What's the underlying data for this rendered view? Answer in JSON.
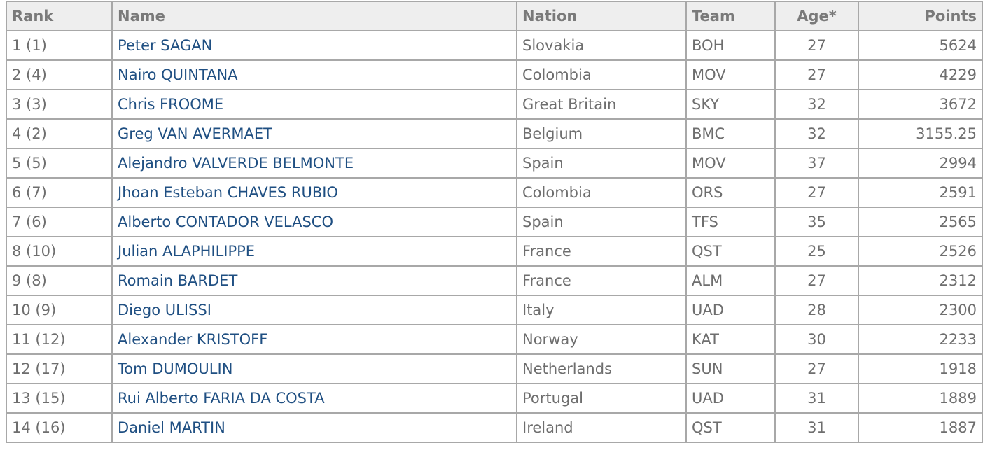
{
  "table": {
    "headers": {
      "rank": "Rank",
      "name": "Name",
      "nation": "Nation",
      "team": "Team",
      "age": "Age*",
      "points": "Points"
    },
    "rows": [
      {
        "rank": "1 (1)",
        "name": "Peter SAGAN",
        "nation": "Slovakia",
        "team": "BOH",
        "age": "27",
        "points": "5624"
      },
      {
        "rank": "2 (4)",
        "name": "Nairo QUINTANA",
        "nation": "Colombia",
        "team": "MOV",
        "age": "27",
        "points": "4229"
      },
      {
        "rank": "3 (3)",
        "name": "Chris FROOME",
        "nation": "Great Britain",
        "team": "SKY",
        "age": "32",
        "points": "3672"
      },
      {
        "rank": "4 (2)",
        "name": "Greg VAN AVERMAET",
        "nation": "Belgium",
        "team": "BMC",
        "age": "32",
        "points": "3155.25"
      },
      {
        "rank": "5 (5)",
        "name": "Alejandro VALVERDE BELMONTE",
        "nation": "Spain",
        "team": "MOV",
        "age": "37",
        "points": "2994"
      },
      {
        "rank": "6 (7)",
        "name": "Jhoan Esteban CHAVES RUBIO",
        "nation": "Colombia",
        "team": "ORS",
        "age": "27",
        "points": "2591"
      },
      {
        "rank": "7 (6)",
        "name": "Alberto CONTADOR VELASCO",
        "nation": "Spain",
        "team": "TFS",
        "age": "35",
        "points": "2565"
      },
      {
        "rank": "8 (10)",
        "name": "Julian ALAPHILIPPE",
        "nation": "France",
        "team": "QST",
        "age": "25",
        "points": "2526"
      },
      {
        "rank": "9 (8)",
        "name": "Romain BARDET",
        "nation": "France",
        "team": "ALM",
        "age": "27",
        "points": "2312"
      },
      {
        "rank": "10 (9)",
        "name": "Diego ULISSI",
        "nation": "Italy",
        "team": "UAD",
        "age": "28",
        "points": "2300"
      },
      {
        "rank": "11 (12)",
        "name": "Alexander KRISTOFF",
        "nation": "Norway",
        "team": "KAT",
        "age": "30",
        "points": "2233"
      },
      {
        "rank": "12 (17)",
        "name": "Tom DUMOULIN",
        "nation": "Netherlands",
        "team": "SUN",
        "age": "27",
        "points": "1918"
      },
      {
        "rank": "13 (15)",
        "name": "Rui Alberto FARIA DA COSTA",
        "nation": "Portugal",
        "team": "UAD",
        "age": "31",
        "points": "1889"
      },
      {
        "rank": "14 (16)",
        "name": "Daniel MARTIN",
        "nation": "Ireland",
        "team": "QST",
        "age": "31",
        "points": "1887"
      }
    ]
  }
}
